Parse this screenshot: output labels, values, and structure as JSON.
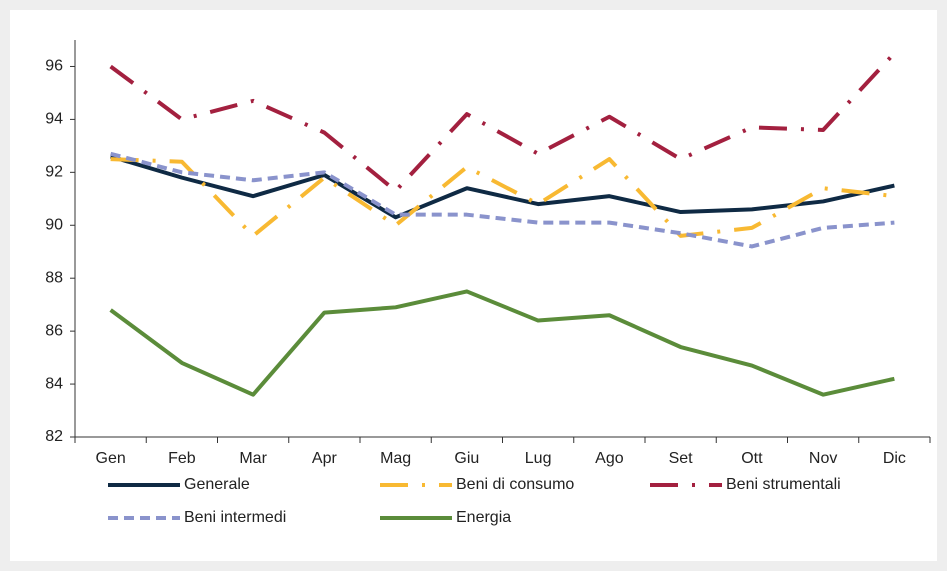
{
  "chart_data": {
    "type": "line",
    "categories": [
      "Gen",
      "Feb",
      "Mar",
      "Apr",
      "Mag",
      "Giu",
      "Lug",
      "Ago",
      "Set",
      "Ott",
      "Nov",
      "Dic"
    ],
    "series": [
      {
        "name": "Generale",
        "color": "#0f2a44",
        "dash": "solid",
        "values": [
          92.6,
          91.8,
          91.1,
          91.9,
          90.3,
          91.4,
          90.8,
          91.1,
          90.5,
          90.6,
          90.9,
          91.5
        ]
      },
      {
        "name": "Beni di consumo",
        "color": "#f8b932",
        "dash": "dashdot",
        "values": [
          92.5,
          92.4,
          89.6,
          91.8,
          90.0,
          92.2,
          90.8,
          92.5,
          89.6,
          89.9,
          91.4,
          91.1
        ]
      },
      {
        "name": "Beni strumentali",
        "color": "#a3203f",
        "dash": "dashdot",
        "values": [
          96.0,
          94.0,
          94.7,
          93.5,
          91.3,
          94.2,
          92.7,
          94.1,
          92.5,
          93.7,
          93.6,
          96.5
        ]
      },
      {
        "name": "Beni intermedi",
        "color": "#8a93cc",
        "dash": "dash",
        "values": [
          92.7,
          92.0,
          91.7,
          92.0,
          90.4,
          90.4,
          90.1,
          90.1,
          89.7,
          89.2,
          89.9,
          90.1
        ]
      },
      {
        "name": "Energia",
        "color": "#5b8c3a",
        "dash": "solid",
        "values": [
          86.8,
          84.8,
          83.6,
          86.7,
          86.9,
          87.5,
          86.4,
          86.6,
          85.4,
          84.7,
          83.6,
          84.2
        ]
      }
    ],
    "ylim": [
      82,
      97
    ],
    "yticks": [
      82,
      84,
      86,
      88,
      90,
      92,
      94,
      96
    ],
    "grid": false,
    "legend": "bottom"
  }
}
